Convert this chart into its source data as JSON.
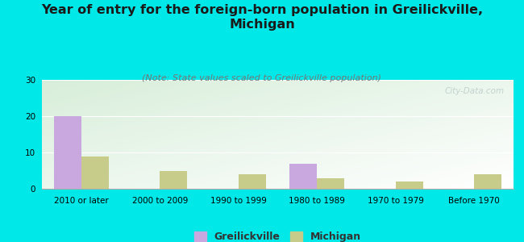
{
  "title": "Year of entry for the foreign-born population in Greilickville,\nMichigan",
  "subtitle": "(Note: State values scaled to Greilickville population)",
  "categories": [
    "2010 or later",
    "2000 to 2009",
    "1990 to 1999",
    "1980 to 1989",
    "1970 to 1979",
    "Before 1970"
  ],
  "greilickville_values": [
    20,
    0,
    0,
    7,
    0,
    0
  ],
  "michigan_values": [
    9,
    5,
    4,
    3,
    2,
    4
  ],
  "greilickville_color": "#c9a8e0",
  "michigan_color": "#c8cc8a",
  "background_color": "#00e8e8",
  "ylim": [
    0,
    30
  ],
  "yticks": [
    0,
    10,
    20,
    30
  ],
  "bar_width": 0.35,
  "title_fontsize": 11.5,
  "subtitle_fontsize": 8,
  "tick_fontsize": 7.5,
  "legend_fontsize": 9,
  "watermark": "City-Data.com"
}
